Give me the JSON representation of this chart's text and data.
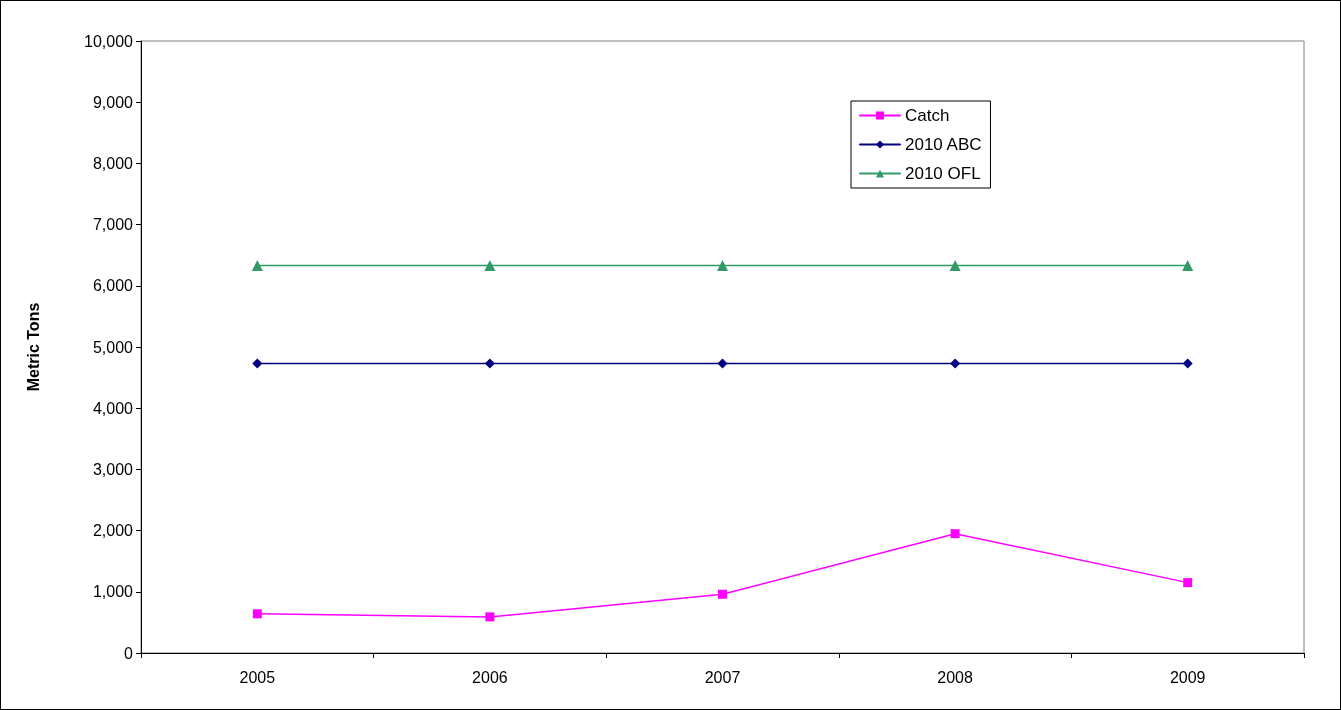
{
  "chart_data": {
    "type": "line",
    "ylabel": "Metric Tons",
    "categories": [
      "2005",
      "2006",
      "2007",
      "2008",
      "2009"
    ],
    "series": [
      {
        "name": "Catch",
        "color": "#ff00ff",
        "marker": "square",
        "values": [
          640,
          590,
          960,
          1950,
          1150
        ]
      },
      {
        "name": "2010 ABC",
        "color": "#000080",
        "marker": "diamond",
        "values": [
          4730,
          4730,
          4730,
          4730,
          4730
        ]
      },
      {
        "name": "2010 OFL",
        "color": "#339966",
        "marker": "triangle",
        "values": [
          6330,
          6330,
          6330,
          6330,
          6330
        ]
      }
    ],
    "ylim": [
      0,
      10000
    ],
    "yticks": [
      {
        "value": 0,
        "label": "0"
      },
      {
        "value": 1000,
        "label": "1,000"
      },
      {
        "value": 2000,
        "label": "2,000"
      },
      {
        "value": 3000,
        "label": "3,000"
      },
      {
        "value": 4000,
        "label": "4,000"
      },
      {
        "value": 5000,
        "label": "5,000"
      },
      {
        "value": 6000,
        "label": "6,000"
      },
      {
        "value": 7000,
        "label": "7,000"
      },
      {
        "value": 8000,
        "label": "8,000"
      },
      {
        "value": 9000,
        "label": "9,000"
      },
      {
        "value": 10000,
        "label": "10,000"
      }
    ],
    "grid": false,
    "legend": "top right",
    "line_style": "solid"
  }
}
